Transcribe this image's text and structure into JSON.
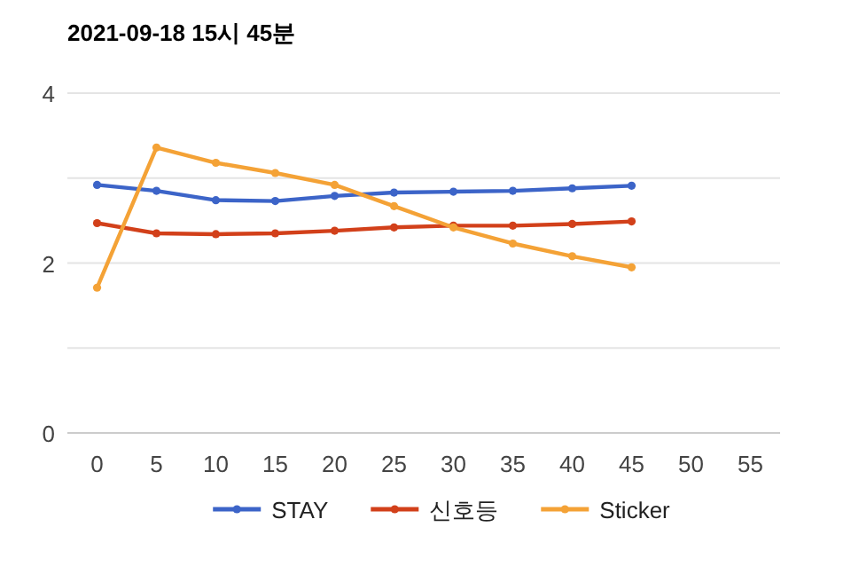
{
  "chart_data": {
    "type": "line",
    "title": "2021-09-18 15시 45분",
    "x": [
      0,
      5,
      10,
      15,
      20,
      25,
      30,
      35,
      40,
      45
    ],
    "series": [
      {
        "name": "STAY",
        "color": "#3c64c8",
        "values": [
          2.92,
          2.85,
          2.74,
          2.73,
          2.79,
          2.83,
          2.84,
          2.85,
          2.88,
          2.91
        ]
      },
      {
        "name": "신호등",
        "color": "#d2401a",
        "values": [
          2.47,
          2.35,
          2.34,
          2.35,
          2.38,
          2.42,
          2.44,
          2.44,
          2.46,
          2.49
        ]
      },
      {
        "name": "Sticker",
        "color": "#f4a236",
        "values": [
          1.71,
          3.36,
          3.18,
          3.06,
          2.92,
          2.67,
          2.42,
          2.23,
          2.08,
          1.95
        ]
      }
    ],
    "xlim": [
      -2.5,
      57.5
    ],
    "ylim": [
      0,
      4
    ],
    "xticks": [
      0,
      5,
      10,
      15,
      20,
      25,
      30,
      35,
      40,
      45,
      50,
      55
    ],
    "yticks": [
      0,
      {
        "value": 1,
        "label": null
      },
      2,
      {
        "value": 3,
        "label": null
      },
      4
    ],
    "grid": "y",
    "legend": "bottom",
    "marker": "circle"
  }
}
